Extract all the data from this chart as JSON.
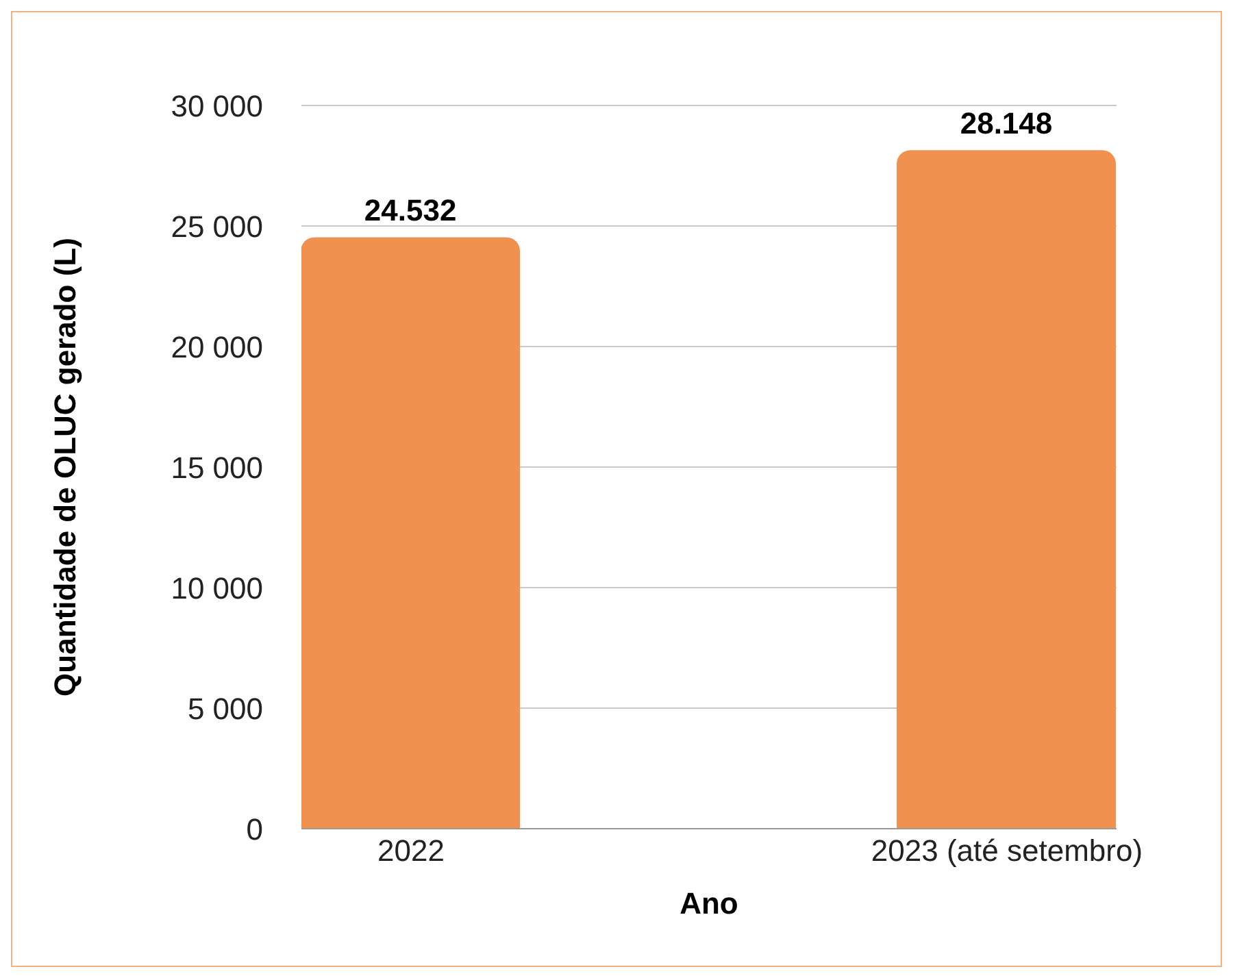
{
  "chart_data": {
    "type": "bar",
    "xlabel": "Ano",
    "ylabel": "Quantidade de OLUC gerado (L)",
    "categories": [
      "2022",
      "2023 (até setembro)"
    ],
    "values": [
      24532,
      28148
    ],
    "value_labels": [
      "24.532",
      "28.148"
    ],
    "color": "#f0914f",
    "ylim": [
      0,
      30000
    ],
    "yticks": [
      {
        "value": 0,
        "label": "0"
      },
      {
        "value": 5000,
        "label": "5 000"
      },
      {
        "value": 10000,
        "label": "10 000"
      },
      {
        "value": 15000,
        "label": "15 000"
      },
      {
        "value": 20000,
        "label": "20 000"
      },
      {
        "value": 25000,
        "label": "25 000"
      },
      {
        "value": 30000,
        "label": "30 000"
      }
    ],
    "grid": "y",
    "legend": false
  }
}
